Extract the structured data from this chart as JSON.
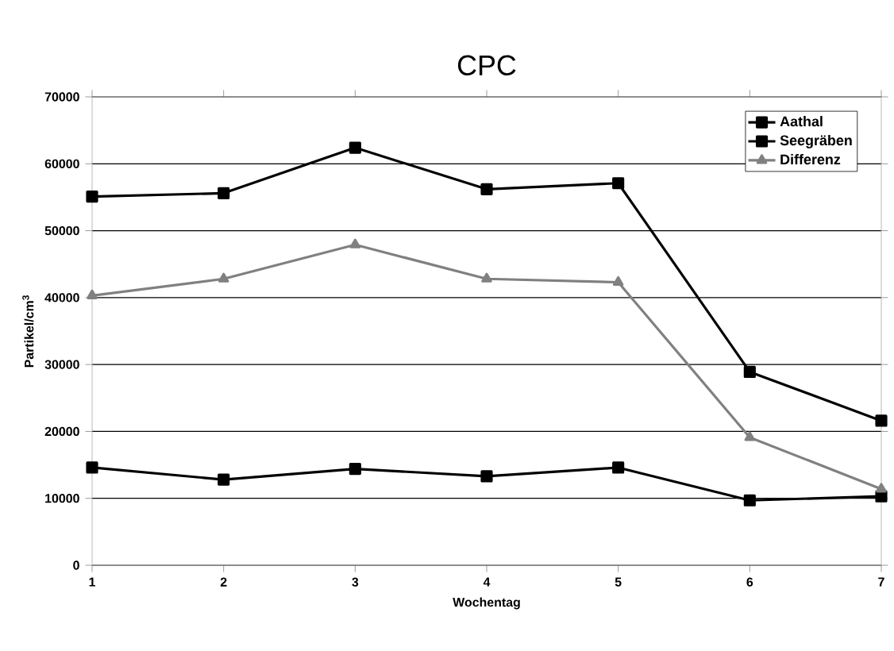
{
  "chart_data": {
    "type": "line",
    "title": "CPC",
    "xlabel": "Wochentag",
    "ylabel": "Partikel/cm$^{3}$",
    "x": [
      1,
      2,
      3,
      4,
      5,
      6,
      7
    ],
    "xlim": [
      1,
      7
    ],
    "xticks": [
      1,
      2,
      3,
      4,
      5,
      6,
      7
    ],
    "ylim": [
      0,
      70000
    ],
    "yticks": [
      0,
      10000,
      20000,
      30000,
      40000,
      50000,
      60000,
      70000
    ],
    "grid": "y",
    "legend": "top right",
    "line_style": "solid",
    "series": [
      {
        "name": "Aathal",
        "color": "#000000",
        "marker": "square",
        "values": [
          55100,
          55600,
          62400,
          56200,
          57100,
          28900,
          21600
        ]
      },
      {
        "name": "Seegräben",
        "color": "#000000",
        "marker": "square",
        "values": [
          14600,
          12800,
          14400,
          13300,
          14600,
          9700,
          10300
        ]
      },
      {
        "name": "Differenz",
        "color": "#808080",
        "marker": "triangle",
        "values": [
          40300,
          42800,
          47900,
          42800,
          42300,
          19100,
          11400
        ]
      }
    ]
  }
}
